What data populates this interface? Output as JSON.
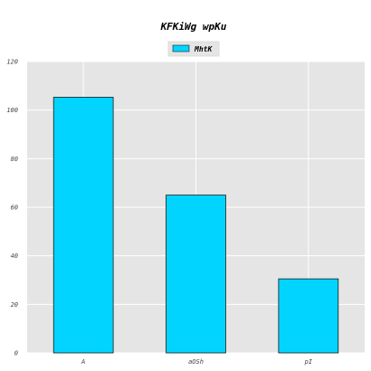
{
  "chart_data": {
    "type": "bar",
    "title": "KFKiWg wpKu",
    "xlabel": "",
    "ylabel": "",
    "categories": [
      "A",
      "aOSh",
      "pI"
    ],
    "series": [
      {
        "name": "MhtK",
        "values": [
          105.3,
          65.0,
          30.5
        ]
      }
    ],
    "ylim": [
      0,
      120
    ],
    "yticks": [
      0,
      20,
      40,
      60,
      80,
      100,
      120
    ],
    "grid": true,
    "legend": "top-center",
    "colors": {
      "bar": "#00d4ff",
      "bar_edge": "#1a1a1a",
      "plot_background": "#e5e5e5",
      "grid": "#ffffff"
    }
  }
}
